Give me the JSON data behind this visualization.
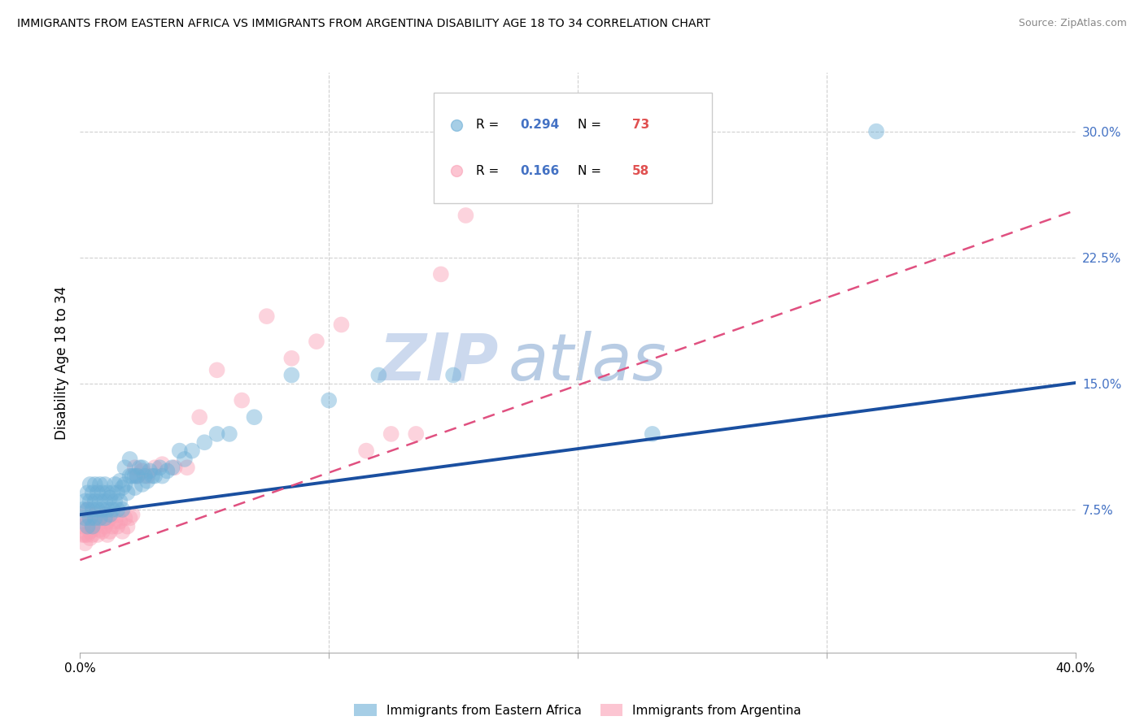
{
  "title": "IMMIGRANTS FROM EASTERN AFRICA VS IMMIGRANTS FROM ARGENTINA DISABILITY AGE 18 TO 34 CORRELATION CHART",
  "source": "Source: ZipAtlas.com",
  "ylabel": "Disability Age 18 to 34",
  "xlim": [
    0.0,
    0.4
  ],
  "ylim": [
    -0.01,
    0.335
  ],
  "color_blue": "#6baed6",
  "color_pink": "#fa9fb5",
  "color_blue_line": "#1a4fa0",
  "color_pink_line": "#e05080",
  "watermark_text": "ZIPAtlas",
  "watermark_color": "#c8d8f0",
  "blue_intercept": 0.072,
  "blue_slope": 0.196,
  "pink_intercept": 0.045,
  "pink_slope": 0.52,
  "pink_line_xmax": 0.4,
  "blue_x": [
    0.001,
    0.002,
    0.002,
    0.003,
    0.003,
    0.003,
    0.004,
    0.004,
    0.004,
    0.005,
    0.005,
    0.005,
    0.006,
    0.006,
    0.006,
    0.007,
    0.007,
    0.008,
    0.008,
    0.008,
    0.009,
    0.009,
    0.01,
    0.01,
    0.01,
    0.011,
    0.011,
    0.012,
    0.012,
    0.013,
    0.013,
    0.014,
    0.014,
    0.015,
    0.015,
    0.016,
    0.016,
    0.017,
    0.017,
    0.018,
    0.018,
    0.019,
    0.02,
    0.02,
    0.021,
    0.022,
    0.022,
    0.023,
    0.024,
    0.025,
    0.025,
    0.026,
    0.027,
    0.028,
    0.029,
    0.03,
    0.032,
    0.033,
    0.035,
    0.037,
    0.04,
    0.042,
    0.045,
    0.05,
    0.055,
    0.06,
    0.07,
    0.085,
    0.1,
    0.12,
    0.15,
    0.23,
    0.32
  ],
  "blue_y": [
    0.075,
    0.07,
    0.08,
    0.065,
    0.075,
    0.085,
    0.07,
    0.08,
    0.09,
    0.065,
    0.075,
    0.085,
    0.07,
    0.08,
    0.09,
    0.075,
    0.085,
    0.07,
    0.08,
    0.09,
    0.075,
    0.085,
    0.07,
    0.08,
    0.09,
    0.075,
    0.085,
    0.072,
    0.082,
    0.075,
    0.085,
    0.08,
    0.09,
    0.075,
    0.085,
    0.08,
    0.092,
    0.075,
    0.088,
    0.1,
    0.09,
    0.085,
    0.095,
    0.105,
    0.095,
    0.088,
    0.095,
    0.095,
    0.1,
    0.09,
    0.1,
    0.095,
    0.092,
    0.098,
    0.095,
    0.095,
    0.1,
    0.095,
    0.098,
    0.1,
    0.11,
    0.105,
    0.11,
    0.115,
    0.12,
    0.12,
    0.13,
    0.155,
    0.14,
    0.155,
    0.155,
    0.12,
    0.3
  ],
  "pink_x": [
    0.001,
    0.001,
    0.002,
    0.002,
    0.002,
    0.003,
    0.003,
    0.003,
    0.004,
    0.004,
    0.004,
    0.005,
    0.005,
    0.005,
    0.006,
    0.006,
    0.007,
    0.007,
    0.008,
    0.008,
    0.009,
    0.009,
    0.01,
    0.01,
    0.011,
    0.011,
    0.012,
    0.012,
    0.013,
    0.014,
    0.015,
    0.015,
    0.016,
    0.017,
    0.018,
    0.019,
    0.02,
    0.021,
    0.022,
    0.023,
    0.025,
    0.027,
    0.03,
    0.033,
    0.038,
    0.043,
    0.048,
    0.055,
    0.065,
    0.075,
    0.085,
    0.095,
    0.105,
    0.115,
    0.125,
    0.135,
    0.145,
    0.155
  ],
  "pink_y": [
    0.065,
    0.06,
    0.055,
    0.06,
    0.068,
    0.06,
    0.068,
    0.075,
    0.062,
    0.07,
    0.058,
    0.063,
    0.07,
    0.06,
    0.065,
    0.072,
    0.06,
    0.068,
    0.063,
    0.07,
    0.062,
    0.068,
    0.065,
    0.072,
    0.06,
    0.068,
    0.062,
    0.07,
    0.065,
    0.068,
    0.065,
    0.072,
    0.068,
    0.062,
    0.07,
    0.065,
    0.07,
    0.072,
    0.1,
    0.095,
    0.098,
    0.095,
    0.1,
    0.102,
    0.1,
    0.1,
    0.13,
    0.158,
    0.14,
    0.19,
    0.165,
    0.175,
    0.185,
    0.11,
    0.12,
    0.12,
    0.215,
    0.25
  ]
}
